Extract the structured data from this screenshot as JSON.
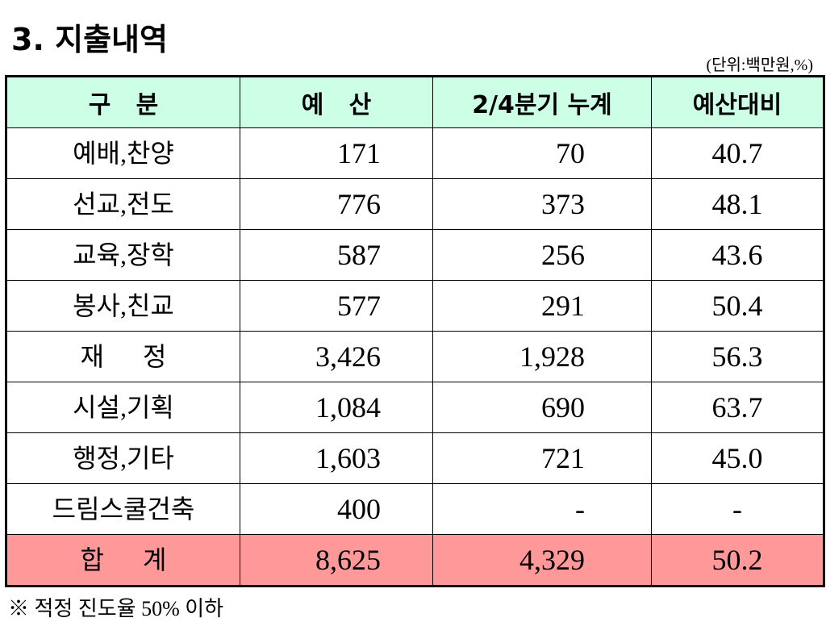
{
  "header": {
    "title": "3. 지출내역",
    "unit": "(단위:백만원,%)"
  },
  "table": {
    "columns": [
      "구   분",
      "예   산",
      "2/4분기 누계",
      "예산대비"
    ],
    "rows": [
      [
        "예배,찬양",
        "171",
        "70",
        "40.7"
      ],
      [
        "선교,전도",
        "776",
        "373",
        "48.1"
      ],
      [
        "교육,장학",
        "587",
        "256",
        "43.6"
      ],
      [
        "봉사,친교",
        "577",
        "291",
        "50.4"
      ],
      [
        "재      정",
        "3,426",
        "1,928",
        "56.3"
      ],
      [
        "시설,기획",
        "1,084",
        "690",
        "63.7"
      ],
      [
        "행정,기타",
        "1,603",
        "721",
        "45.0"
      ],
      [
        "드림스쿨건축",
        "400",
        "-",
        "-"
      ]
    ],
    "total": [
      "합      계",
      "8,625",
      "4,329",
      "50.2"
    ]
  },
  "footer": {
    "note": "※ 적정 진도율 50% 이하"
  }
}
